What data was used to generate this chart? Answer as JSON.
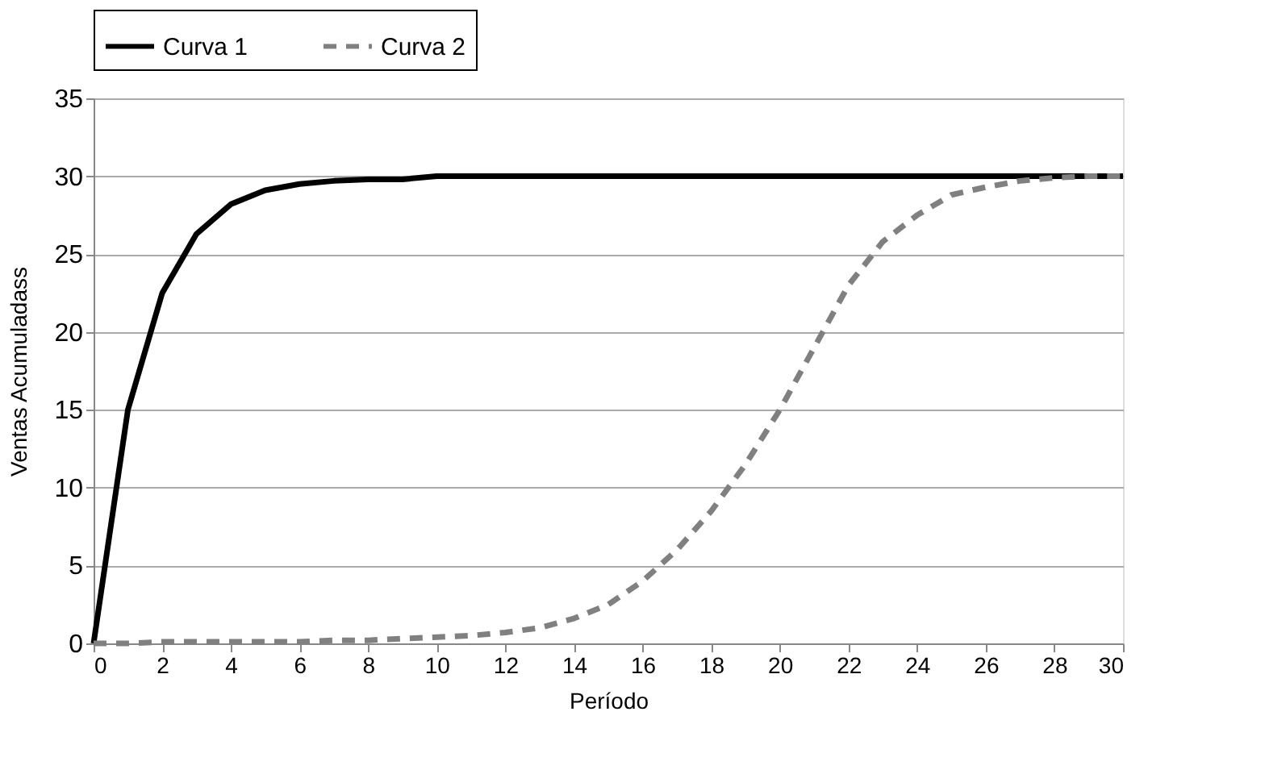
{
  "chart_data": {
    "type": "line",
    "xlabel": "Período",
    "ylabel": "Ventas Acumuladass",
    "x": [
      0,
      1,
      2,
      3,
      4,
      5,
      6,
      7,
      8,
      9,
      10,
      11,
      12,
      13,
      14,
      15,
      16,
      17,
      18,
      19,
      20,
      21,
      22,
      23,
      24,
      25,
      26,
      27,
      28,
      29,
      30
    ],
    "series": [
      {
        "name": "Curva 1",
        "color": "#000000",
        "line_style": "solid",
        "values": [
          0,
          15,
          22.5,
          26.3,
          28.2,
          29.1,
          29.5,
          29.7,
          29.8,
          29.8,
          30,
          30,
          30,
          30,
          30,
          30,
          30,
          30,
          30,
          30,
          30,
          30,
          30,
          30,
          30,
          30,
          30,
          30,
          30,
          30,
          30
        ]
      },
      {
        "name": "Curva 2",
        "color": "#808080",
        "line_style": "dashed",
        "values": [
          0,
          0,
          0.1,
          0.1,
          0.1,
          0.1,
          0.1,
          0.2,
          0.2,
          0.3,
          0.4,
          0.5,
          0.7,
          1,
          1.6,
          2.5,
          4,
          6,
          8.5,
          11.5,
          15,
          19,
          23,
          25.8,
          27.5,
          28.8,
          29.3,
          29.7,
          29.9,
          30,
          30
        ]
      }
    ],
    "xlim": [
      0,
      30
    ],
    "xticks": [
      0,
      2,
      4,
      6,
      8,
      10,
      12,
      14,
      16,
      18,
      20,
      22,
      24,
      26,
      28,
      30
    ],
    "ylim": [
      0,
      35
    ],
    "yticks": [
      0,
      5,
      10,
      15,
      20,
      25,
      30,
      35
    ],
    "grid": "y",
    "legend": "top",
    "marker": "none"
  }
}
